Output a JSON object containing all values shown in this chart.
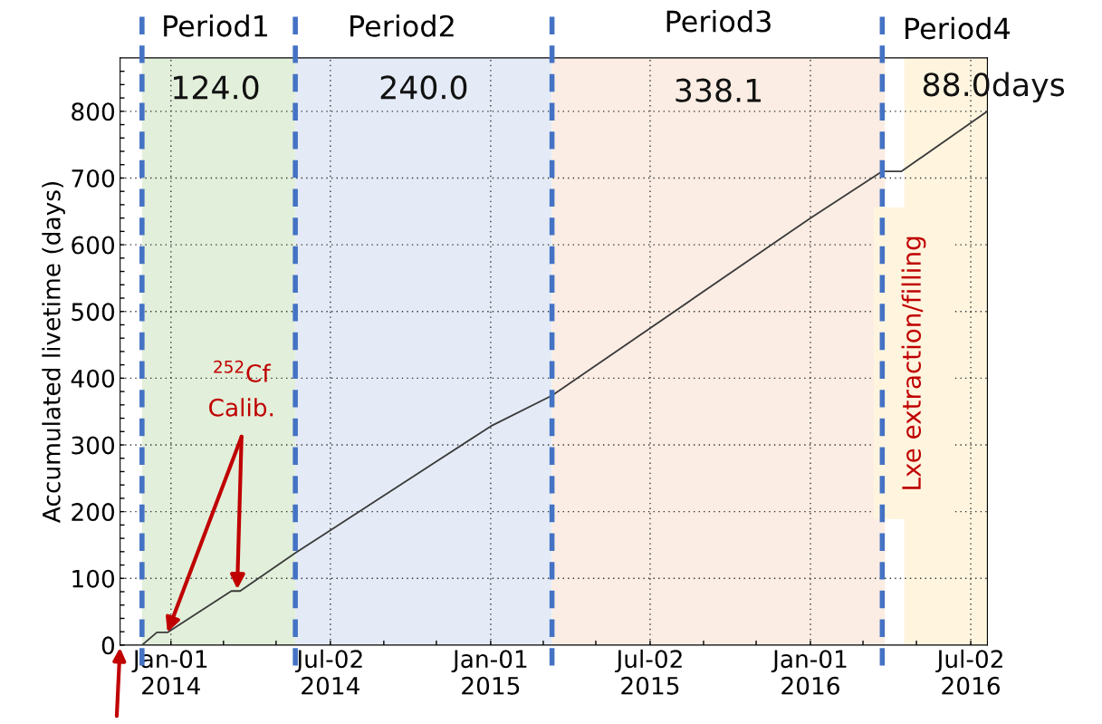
{
  "chart_data": {
    "type": "line",
    "ylabel": "Accumulated livetime (days)",
    "x": [
      "2013-11-29",
      "2013-12-16",
      "2013-12-28",
      "2014-03-11",
      "2014-03-21",
      "2014-05-23",
      "2014-07-02",
      "2015-01-01",
      "2015-03-12",
      "2016-01-01",
      "2016-03-23",
      "2016-04-14",
      "2016-07-21"
    ],
    "series": [
      {
        "color": "#3a3a3a",
        "values": [
          0,
          19,
          19,
          81,
          81,
          138,
          172,
          328,
          374,
          640,
          710,
          710,
          800
        ]
      }
    ],
    "xlim": [
      "2013-11-04",
      "2016-07-21"
    ],
    "xticks": [
      {
        "value": "2014-01-01",
        "label": "Jan-01\n2014"
      },
      {
        "value": "2014-03-02",
        "label": null
      },
      {
        "value": "2014-05-01",
        "label": null
      },
      {
        "value": "2014-07-02",
        "label": "Jul-02\n2014"
      },
      {
        "value": "2014-09-01",
        "label": null
      },
      {
        "value": "2014-10-31",
        "label": null
      },
      {
        "value": "2015-01-01",
        "label": "Jan-01\n2015"
      },
      {
        "value": "2015-03-02",
        "label": null
      },
      {
        "value": "2015-05-01",
        "label": null
      },
      {
        "value": "2015-07-02",
        "label": "Jul-02\n2015"
      },
      {
        "value": "2015-09-01",
        "label": null
      },
      {
        "value": "2015-10-31",
        "label": null
      },
      {
        "value": "2016-01-01",
        "label": "Jan-01\n2016"
      },
      {
        "value": "2016-03-01",
        "label": null
      },
      {
        "value": "2016-05-01",
        "label": null
      },
      {
        "value": "2016-07-02",
        "label": "Jul-02\n2016"
      }
    ],
    "ylim": [
      0,
      880
    ],
    "yticks": [
      0,
      {
        "value": 20,
        "label": null
      },
      {
        "value": 40,
        "label": null
      },
      {
        "value": 60,
        "label": null
      },
      {
        "value": 80,
        "label": null
      },
      100,
      {
        "value": 120,
        "label": null
      },
      {
        "value": 140,
        "label": null
      },
      {
        "value": 160,
        "label": null
      },
      {
        "value": 180,
        "label": null
      },
      200,
      {
        "value": 220,
        "label": null
      },
      {
        "value": 240,
        "label": null
      },
      {
        "value": 260,
        "label": null
      },
      {
        "value": 280,
        "label": null
      },
      300,
      {
        "value": 320,
        "label": null
      },
      {
        "value": 340,
        "label": null
      },
      {
        "value": 360,
        "label": null
      },
      {
        "value": 380,
        "label": null
      },
      400,
      {
        "value": 420,
        "label": null
      },
      {
        "value": 440,
        "label": null
      },
      {
        "value": 460,
        "label": null
      },
      {
        "value": 480,
        "label": null
      },
      500,
      {
        "value": 520,
        "label": null
      },
      {
        "value": 540,
        "label": null
      },
      {
        "value": 560,
        "label": null
      },
      {
        "value": 580,
        "label": null
      },
      600,
      {
        "value": 620,
        "label": null
      },
      {
        "value": 640,
        "label": null
      },
      {
        "value": 660,
        "label": null
      },
      {
        "value": 680,
        "label": null
      },
      700,
      {
        "value": 720,
        "label": null
      },
      {
        "value": 740,
        "label": null
      },
      {
        "value": 760,
        "label": null
      },
      {
        "value": 780,
        "label": null
      },
      800,
      {
        "value": 820,
        "label": null
      },
      {
        "value": 840,
        "label": null
      },
      {
        "value": 860,
        "label": null
      }
    ],
    "grid": true,
    "bands": [
      {
        "axis": "x",
        "from": "2013-11-29",
        "to": "2014-05-23",
        "color": "#e2efda"
      },
      {
        "axis": "x",
        "from": "2014-05-23",
        "to": "2015-03-12",
        "color": "#e4ebf6"
      },
      {
        "axis": "x",
        "from": "2015-03-12",
        "to": "2016-03-26",
        "color": "#fbede3"
      },
      {
        "axis": "x",
        "from": "2016-04-17",
        "to": "2016-07-21",
        "color": "#fff5df"
      }
    ],
    "ref_lines": [
      {
        "axis": "x",
        "value": "2013-11-29",
        "color": "#4472c4",
        "line_style": "dashed"
      },
      {
        "axis": "x",
        "value": "2014-05-23",
        "color": "#4472c4",
        "line_style": "dashed"
      },
      {
        "axis": "x",
        "value": "2015-03-12",
        "color": "#4472c4",
        "line_style": "dashed"
      },
      {
        "axis": "x",
        "value": "2016-03-23",
        "color": "#4472c4",
        "line_style": "dashed"
      }
    ],
    "annotations": [
      "Period1",
      "Period2",
      "Period3",
      "Period4",
      "124.0",
      "240.0",
      "338.1",
      "88.0days",
      {
        "text": "$^{252}$Cf\nCalib.",
        "x": "2013-12-28",
        "y": 19
      },
      "Lxe extraction/filling"
    ]
  }
}
